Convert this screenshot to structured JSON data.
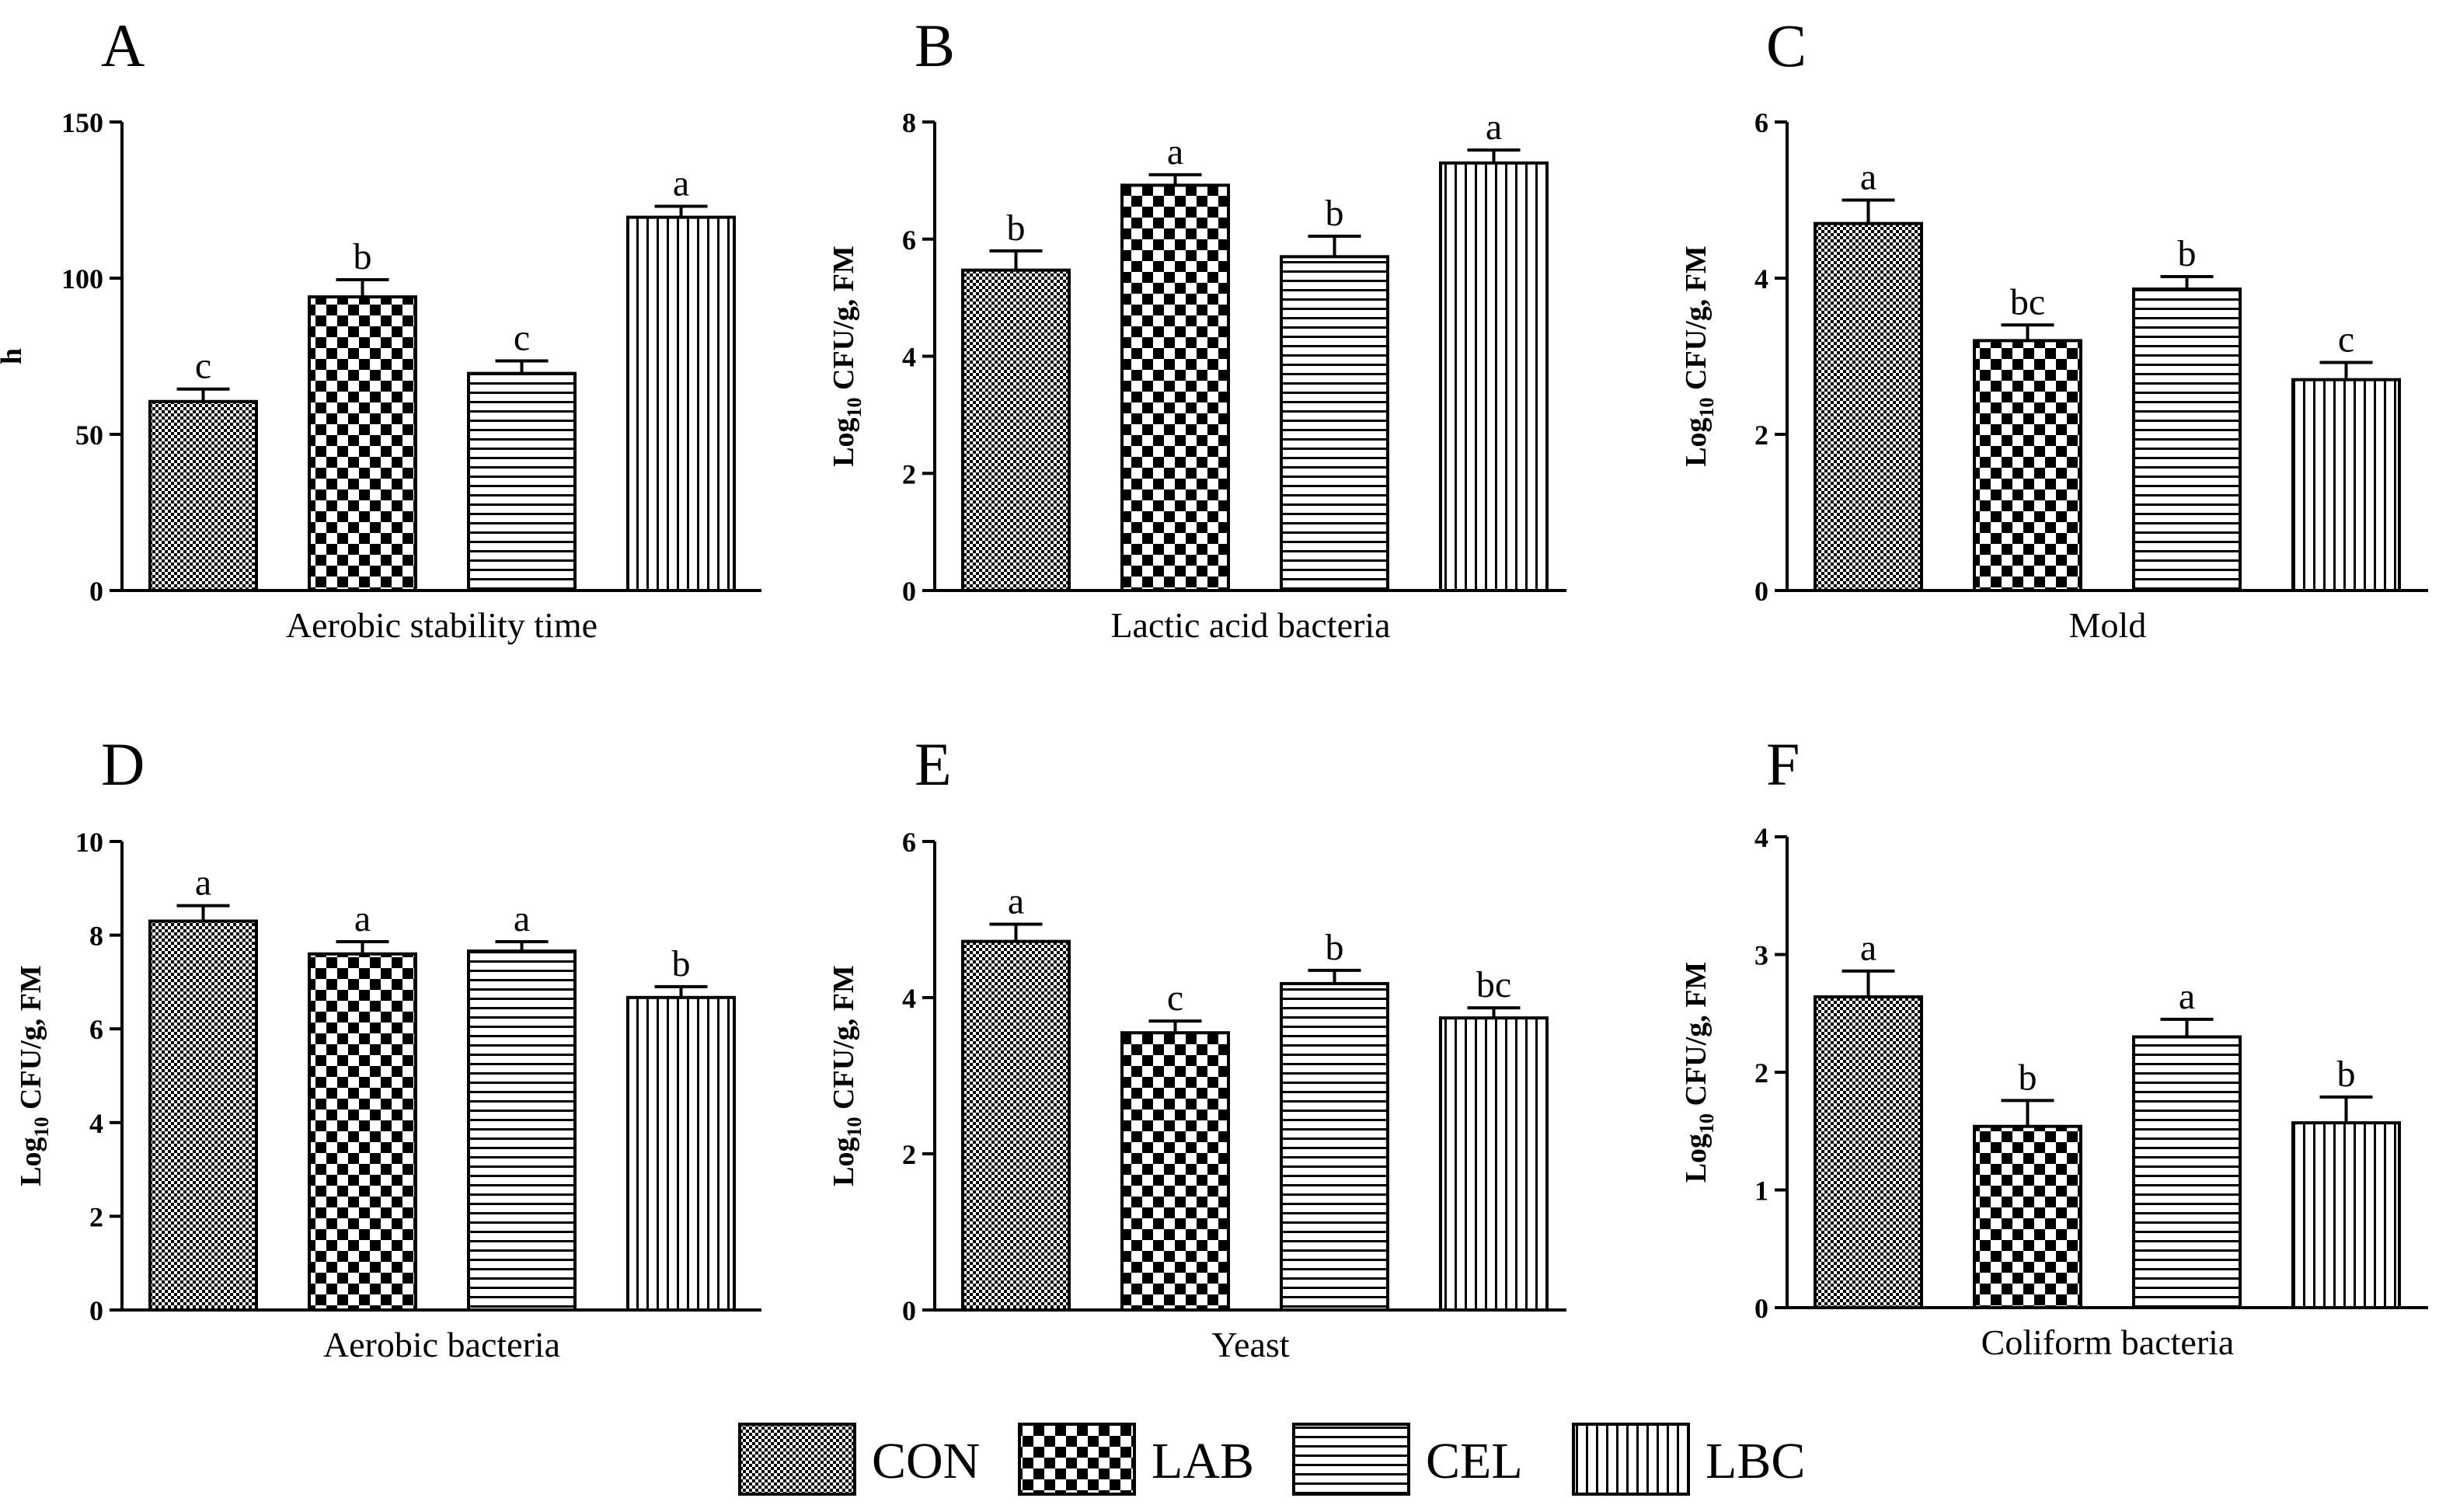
{
  "chart_data": [
    {
      "panel": "A",
      "type": "bar",
      "categories": [
        "CON",
        "LAB",
        "CEL",
        "LBC"
      ],
      "values": [
        60.5,
        94,
        69.5,
        119.5
      ],
      "errors": [
        4,
        5.5,
        4,
        3.5
      ],
      "significance": [
        "c",
        "b",
        "c",
        "a"
      ],
      "xlabel": "Aerobic stability time",
      "ylabel": "h",
      "ylim": [
        0,
        150
      ],
      "yticks": [
        "0",
        "50",
        "100",
        "150"
      ]
    },
    {
      "panel": "B",
      "type": "bar",
      "categories": [
        "CON",
        "LAB",
        "CEL",
        "LBC"
      ],
      "values": [
        5.47,
        6.92,
        5.7,
        7.3
      ],
      "errors": [
        0.33,
        0.18,
        0.35,
        0.22
      ],
      "significance": [
        "b",
        "a",
        "b",
        "a"
      ],
      "xlabel": "Lactic acid bacteria",
      "ylabel_main": "Log",
      "ylabel_sub": "10",
      "ylabel_rest": " CFU/g, FM",
      "ylim": [
        0,
        8
      ],
      "yticks": [
        "0",
        "2",
        "4",
        "6",
        "8"
      ]
    },
    {
      "panel": "C",
      "type": "bar",
      "categories": [
        "CON",
        "LAB",
        "CEL",
        "LBC"
      ],
      "values": [
        4.7,
        3.2,
        3.86,
        2.7
      ],
      "errors": [
        0.3,
        0.2,
        0.16,
        0.22
      ],
      "significance": [
        "a",
        "bc",
        "b",
        "c"
      ],
      "xlabel": "Mold",
      "ylabel_main": "Log",
      "ylabel_sub": "10",
      "ylabel_rest": " CFU/g, FM",
      "ylim": [
        0,
        6
      ],
      "yticks": [
        "0",
        "2",
        "4",
        "6"
      ]
    },
    {
      "panel": "D",
      "type": "bar",
      "categories": [
        "CON",
        "LAB",
        "CEL",
        "LBC"
      ],
      "values": [
        8.3,
        7.6,
        7.66,
        6.67
      ],
      "errors": [
        0.33,
        0.26,
        0.2,
        0.23
      ],
      "significance": [
        "a",
        "a",
        "a",
        "b"
      ],
      "xlabel": "Aerobic bacteria",
      "ylabel_main": "Log",
      "ylabel_sub": "10",
      "ylabel_rest": " CFU/g, FM",
      "ylim": [
        0,
        10
      ],
      "yticks": [
        "0",
        "2",
        "4",
        "6",
        "8",
        "10"
      ]
    },
    {
      "panel": "E",
      "type": "bar",
      "categories": [
        "CON",
        "LAB",
        "CEL",
        "LBC"
      ],
      "values": [
        4.72,
        3.55,
        4.18,
        3.74
      ],
      "errors": [
        0.22,
        0.15,
        0.17,
        0.13
      ],
      "significance": [
        "a",
        "c",
        "b",
        "bc"
      ],
      "xlabel": "Yeast",
      "ylabel_main": "Log",
      "ylabel_sub": "10",
      "ylabel_rest": " CFU/g, FM",
      "ylim": [
        0,
        6
      ],
      "yticks": [
        "0",
        "2",
        "4",
        "6"
      ]
    },
    {
      "panel": "F",
      "type": "bar",
      "categories": [
        "CON",
        "LAB",
        "CEL",
        "LBC"
      ],
      "values": [
        2.64,
        1.54,
        2.3,
        1.57
      ],
      "errors": [
        0.22,
        0.22,
        0.15,
        0.22
      ],
      "significance": [
        "a",
        "b",
        "a",
        "b"
      ],
      "xlabel": "Coliform bacteria",
      "ylabel_main": "Log",
      "ylabel_sub": "10",
      "ylabel_rest": " CFU/g, FM",
      "ylim": [
        0,
        4
      ],
      "yticks": [
        "0",
        "1",
        "2",
        "3",
        "4"
      ]
    }
  ],
  "legend": {
    "position": "bottom-center",
    "items": [
      {
        "label": "CON",
        "pattern": "fine-check"
      },
      {
        "label": "LAB",
        "pattern": "checkerboard"
      },
      {
        "label": "CEL",
        "pattern": "horizontal-lines"
      },
      {
        "label": "LBC",
        "pattern": "vertical-lines"
      }
    ]
  }
}
